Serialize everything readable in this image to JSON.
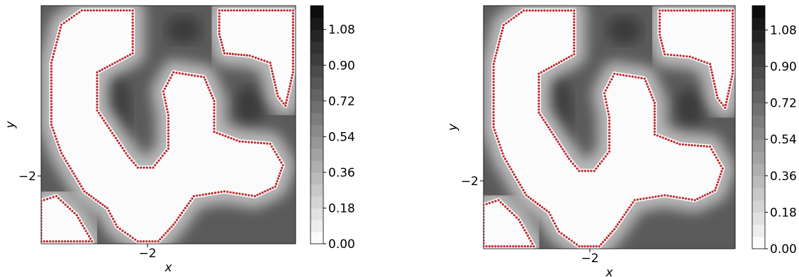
{
  "chart_data": [
    {
      "type": "heatmap",
      "xlabel": "x",
      "ylabel": "y",
      "x_ticks": [
        {
          "value": -2,
          "label": "−2"
        }
      ],
      "y_ticks": [
        {
          "value": -2,
          "label": "−2"
        }
      ],
      "colorbar": {
        "ticks": [
          "0.00",
          "0.18",
          "0.36",
          "0.54",
          "0.72",
          "0.90",
          "1.08"
        ],
        "range": [
          0,
          1.2
        ],
        "levels": 20,
        "colormap": "Greys"
      },
      "boundary_marker_color": "#c0282d",
      "grid": false
    },
    {
      "type": "heatmap",
      "xlabel": "x",
      "ylabel": "y",
      "x_ticks": [
        {
          "value": -2,
          "label": "−2"
        }
      ],
      "y_ticks": [
        {
          "value": -2,
          "label": "−2"
        }
      ],
      "colorbar": {
        "ticks": [
          "0.00",
          "0.18",
          "0.36",
          "0.54",
          "0.72",
          "0.90",
          "1.08"
        ],
        "range": [
          0,
          1.2
        ],
        "levels": 20,
        "colormap": "Greys"
      },
      "boundary_marker_color": "#c0282d",
      "grid": false
    }
  ]
}
